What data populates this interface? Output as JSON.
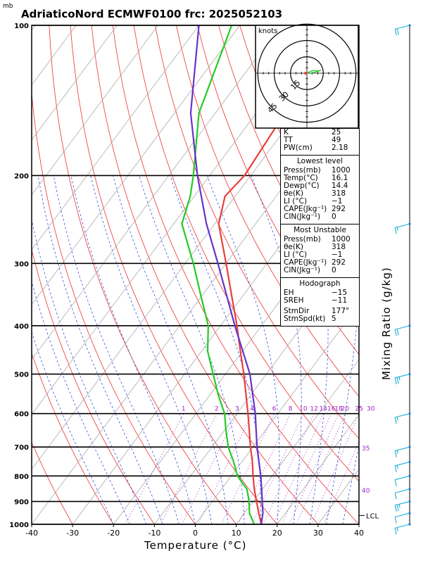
{
  "header": {
    "title": "AdriaticoNord ECMWF0100  frc: 2025052103",
    "pressure_unit": "mb"
  },
  "axes": {
    "xlabel": "Temperature (°C)",
    "right_label": "Mixing Ratio (g/kg)",
    "lcl_label": "LCL"
  },
  "hodograph": {
    "units_label": "knots",
    "ring_labels": [
      "15",
      "30",
      "45"
    ]
  },
  "indices": {
    "K": "25",
    "TT": "49",
    "PW_label": "PW(cm)",
    "PW": "2.18",
    "lowest_title": "Lowest level",
    "lowest": [
      {
        "k": "Press(mb)",
        "v": "1000"
      },
      {
        "k": "Temp(°C)",
        "v": "16.1"
      },
      {
        "k": "Dewp(°C)",
        "v": "14.4"
      },
      {
        "k": "θe(K)",
        "v": "318"
      },
      {
        "k": "LI (°C)",
        "v": "−1"
      },
      {
        "k": "CAPE(Jkg⁻¹)",
        "v": "292"
      },
      {
        "k": "CIN(Jkg⁻¹)",
        "v": "0"
      }
    ],
    "unstable_title": "Most Unstable",
    "unstable": [
      {
        "k": "Press(mb)",
        "v": "1000"
      },
      {
        "k": "θe(K)",
        "v": "318"
      },
      {
        "k": "LI (°C)",
        "v": "−1"
      },
      {
        "k": "CAPE(Jkg⁻¹)",
        "v": "292"
      },
      {
        "k": "CIN(Jkg⁻¹)",
        "v": "0"
      }
    ],
    "hodo_title": "Hodograph",
    "hodo": [
      {
        "k": "EH",
        "v": "−15"
      },
      {
        "k": "SREH",
        "v": "−11"
      }
    ],
    "storm": [
      {
        "k": "StmDir",
        "v": "177°"
      },
      {
        "k": "StmSpd(kt)",
        "v": "5"
      }
    ]
  },
  "chart_data": {
    "type": "line",
    "title": "AdriaticoNord ECMWF0100  frc: 2025052103",
    "xlabel": "Temperature (°C)",
    "ylabel": "",
    "xlim": [
      -40,
      40
    ],
    "ylim": [
      1000,
      100
    ],
    "x_ticks": [
      "-40",
      "-30",
      "-20",
      "-10",
      "0",
      "10",
      "20",
      "30",
      "40"
    ],
    "pressure_levels": [
      "100",
      "200",
      "300",
      "400",
      "500",
      "600",
      "700",
      "800",
      "900",
      "1000"
    ],
    "mixing_ratio_labels": [
      "1",
      "2",
      "3",
      "4",
      "6",
      "8",
      "10",
      "12",
      "14",
      "16",
      "18",
      "20",
      "25",
      "30"
    ],
    "right_extra_labels": [
      "35",
      "40"
    ],
    "series": [
      {
        "name": "temperature",
        "color": "#e8403a",
        "points": [
          [
            1000,
            16.1
          ],
          [
            950,
            13.5
          ],
          [
            900,
            10.8
          ],
          [
            850,
            8.0
          ],
          [
            800,
            5.3
          ],
          [
            750,
            2.6
          ],
          [
            700,
            -0.6
          ],
          [
            650,
            -3.8
          ],
          [
            600,
            -7.3
          ],
          [
            550,
            -11.2
          ],
          [
            500,
            -15.5
          ],
          [
            450,
            -20.5
          ],
          [
            400,
            -26.0
          ],
          [
            350,
            -32.5
          ],
          [
            300,
            -40.0
          ],
          [
            250,
            -49.0
          ],
          [
            220,
            -52.5
          ],
          [
            200,
            -51.5
          ],
          [
            150,
            -53.0
          ],
          [
            100,
            -55.0
          ]
        ]
      },
      {
        "name": "dewpoint",
        "color": "#22cc22",
        "points": [
          [
            1000,
            14.4
          ],
          [
            950,
            11.2
          ],
          [
            900,
            9.0
          ],
          [
            850,
            6.2
          ],
          [
            800,
            1.5
          ],
          [
            750,
            -2.0
          ],
          [
            700,
            -6.0
          ],
          [
            650,
            -9.5
          ],
          [
            600,
            -13.0
          ],
          [
            550,
            -18.0
          ],
          [
            500,
            -23.0
          ],
          [
            450,
            -28.5
          ],
          [
            400,
            -33.0
          ],
          [
            350,
            -40.0
          ],
          [
            300,
            -48.0
          ],
          [
            250,
            -58.0
          ],
          [
            220,
            -61.0
          ],
          [
            200,
            -64.0
          ],
          [
            150,
            -74.0
          ],
          [
            100,
            -82.0
          ]
        ]
      },
      {
        "name": "parcel",
        "color": "#6633cc",
        "points": [
          [
            1000,
            16.1
          ],
          [
            950,
            14.5
          ],
          [
            900,
            12.2
          ],
          [
            850,
            9.8
          ],
          [
            800,
            7.2
          ],
          [
            700,
            1.0
          ],
          [
            600,
            -5.5
          ],
          [
            500,
            -14.0
          ],
          [
            400,
            -26.5
          ],
          [
            300,
            -42.0
          ],
          [
            250,
            -52.0
          ],
          [
            200,
            -63.0
          ],
          [
            150,
            -76.0
          ],
          [
            100,
            -90.0
          ]
        ]
      }
    ],
    "wind_barbs_kt": [
      [
        1000,
        5
      ],
      [
        950,
        10
      ],
      [
        900,
        15
      ],
      [
        850,
        12
      ],
      [
        800,
        10
      ],
      [
        750,
        8
      ],
      [
        700,
        5
      ],
      [
        600,
        5
      ],
      [
        500,
        15
      ],
      [
        400,
        20
      ],
      [
        250,
        5
      ],
      [
        100,
        20
      ]
    ],
    "hodograph_rings_kt": [
      15,
      30,
      45
    ]
  }
}
